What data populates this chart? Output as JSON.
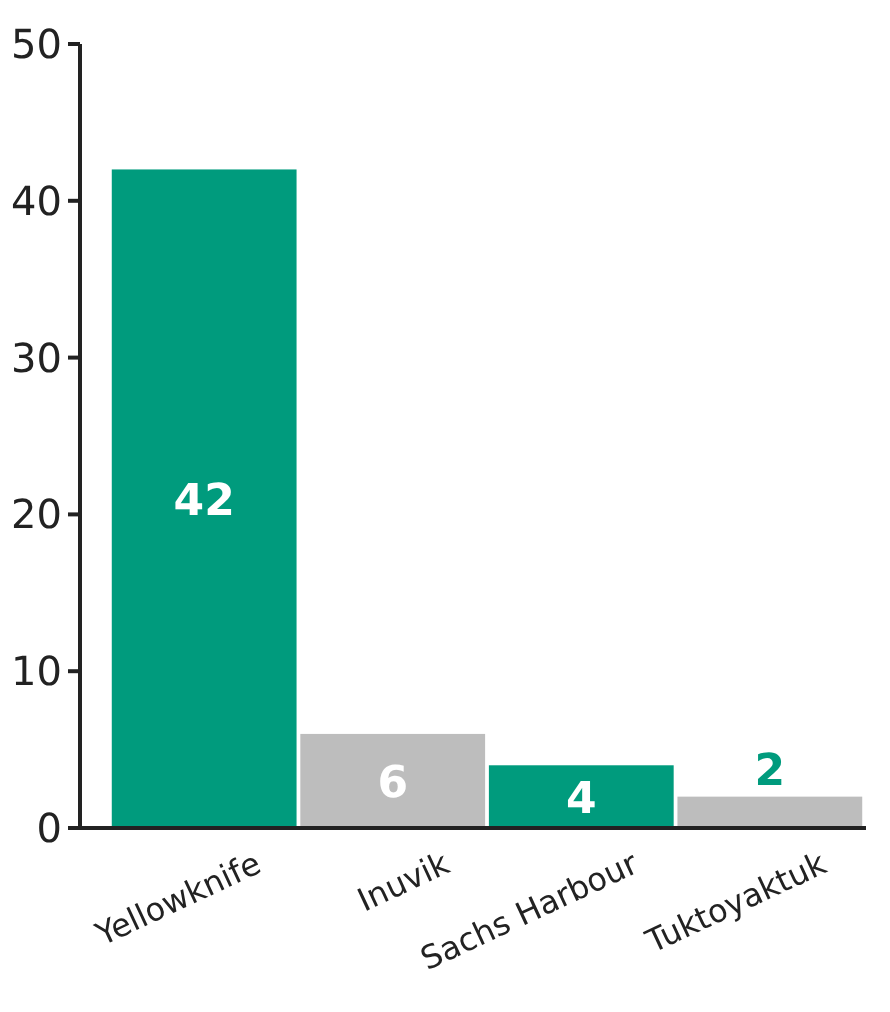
{
  "chart_data": {
    "type": "bar",
    "categories": [
      "Yellowknife",
      "Inuvik",
      "Sachs Harbour",
      "Tuktoyaktuk"
    ],
    "values": [
      42,
      6,
      4,
      2
    ],
    "colors": [
      "#009b7d",
      "#bdbdbd",
      "#009b7d",
      "#bdbdbd"
    ],
    "ylim": [
      0,
      50
    ],
    "yticks": [
      0,
      10,
      20,
      30,
      40,
      50
    ],
    "data_labels": true,
    "grid": false
  }
}
